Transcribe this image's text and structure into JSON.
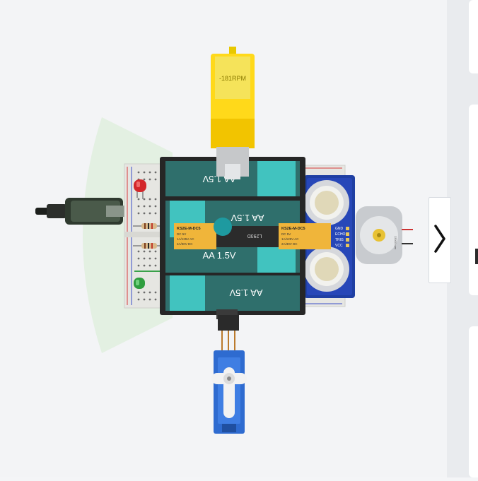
{
  "motor": {
    "rpm_label": "-181RPM"
  },
  "batteries": {
    "label": "AA 1.5V"
  },
  "relays": {
    "model": "KS2E-M-DC5",
    "spec1": "DC 5V",
    "spec2": "1A/125V AC",
    "spec3": "2A/30V DC"
  },
  "driver_ic": {
    "label": "L293D"
  },
  "sensor": {
    "pins": [
      "GND",
      "ECHO",
      "TRIG",
      "VCC"
    ]
  },
  "vibration_motor": {
    "label": "13000 rpm"
  },
  "panel": {
    "collapse_icon": "chevron-right-icon"
  }
}
